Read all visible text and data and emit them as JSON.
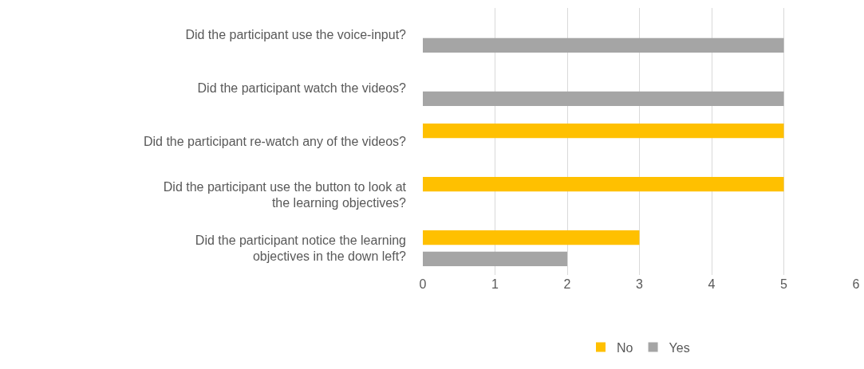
{
  "chart_data": {
    "type": "bar",
    "orientation": "horizontal",
    "categories": [
      "Did the participant use the voice-input?",
      "Did the participant watch the videos?",
      "Did the participant re-watch any of the videos?",
      "Did the participant use the button to look at the learning objectives?",
      "Did the participant notice the learning objectives in the down left?"
    ],
    "series": [
      {
        "name": "No",
        "color": "#ffc000",
        "values": [
          null,
          null,
          5,
          5,
          3
        ]
      },
      {
        "name": "Yes",
        "color": "#a5a5a5",
        "values": [
          5,
          5,
          null,
          null,
          2
        ]
      }
    ],
    "xlim": [
      0,
      6
    ],
    "xticks": [
      0,
      1,
      2,
      3,
      4,
      5,
      6
    ],
    "grid": "x",
    "legend": "bottom"
  }
}
